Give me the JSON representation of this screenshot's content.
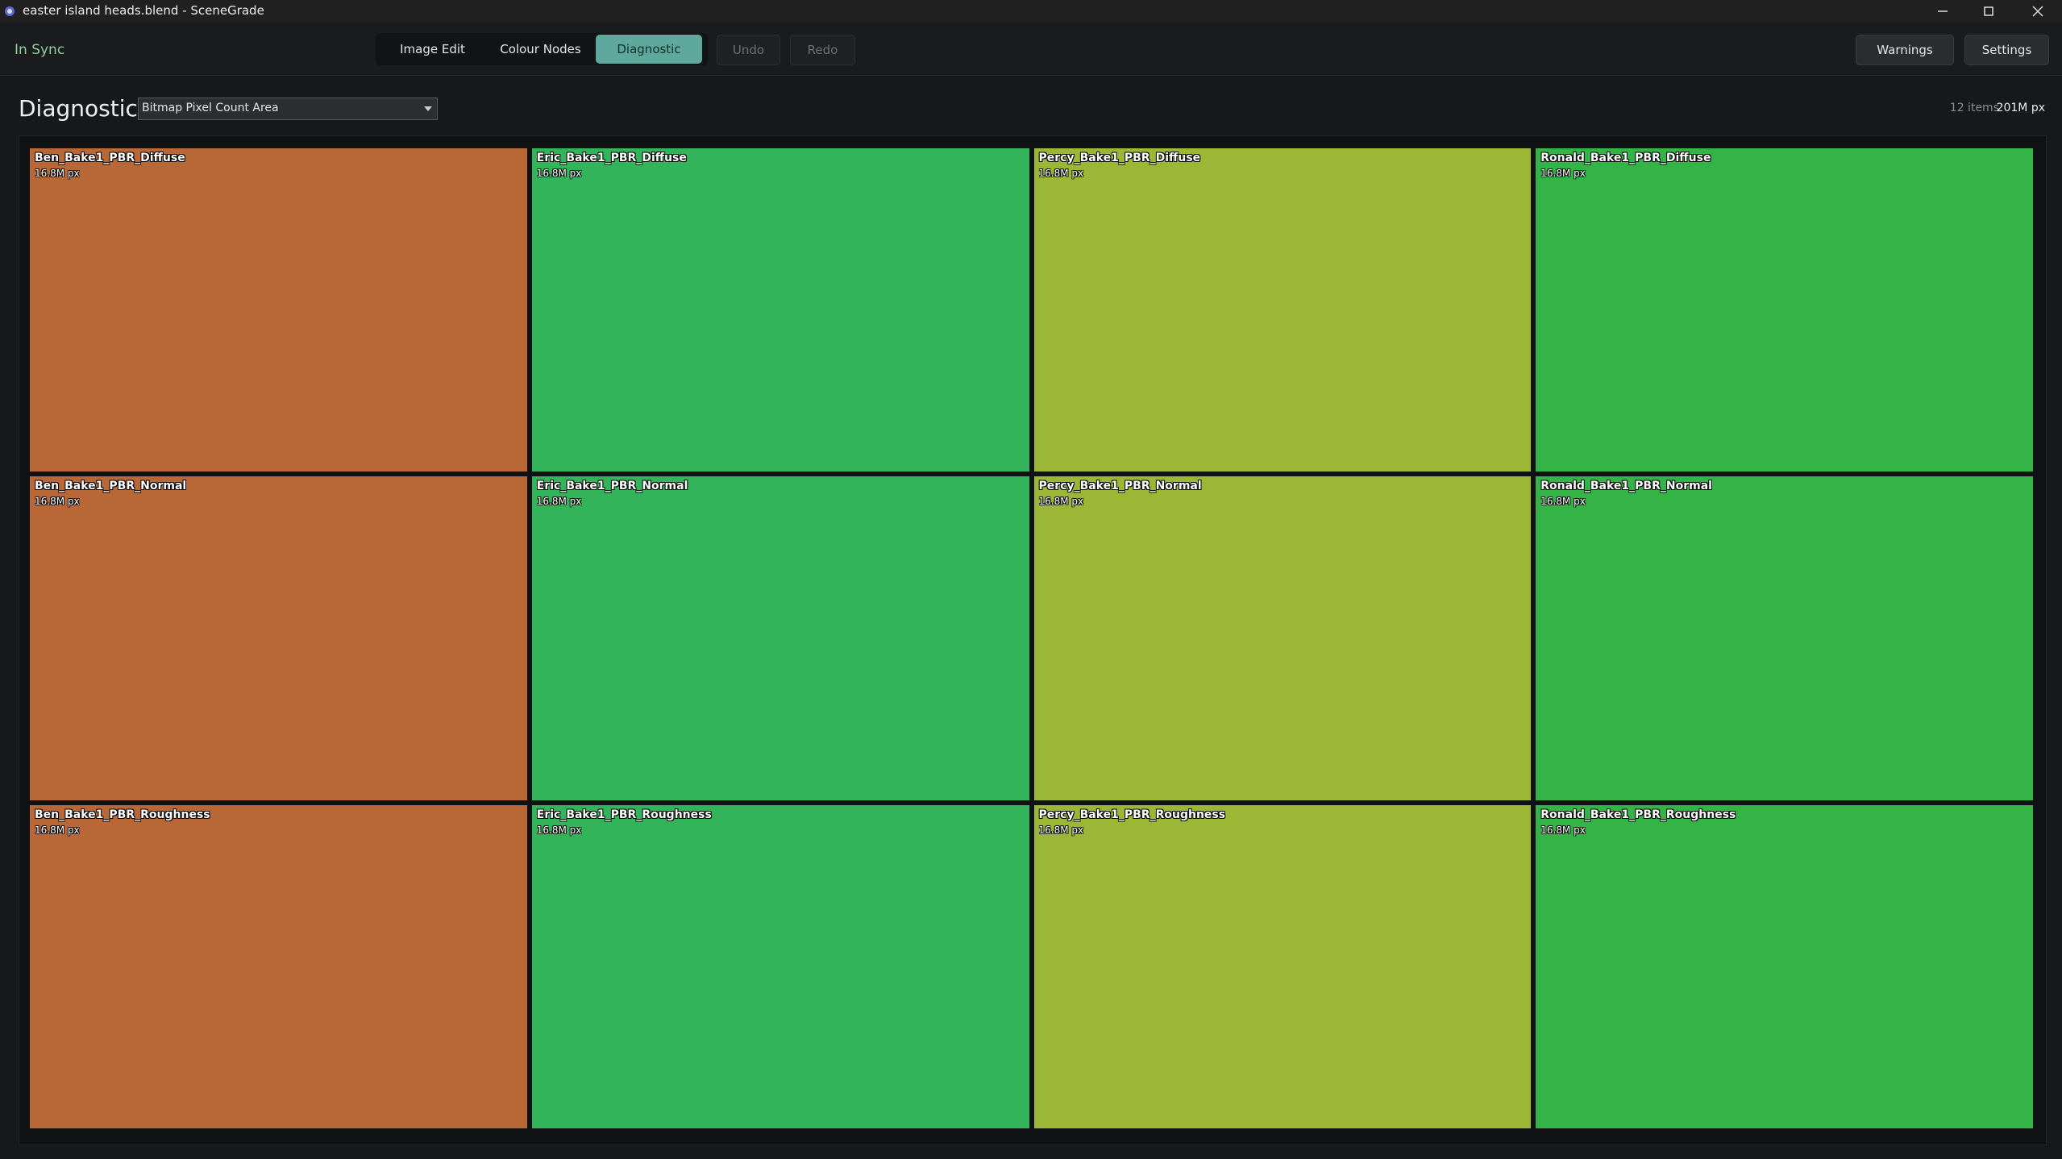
{
  "window": {
    "title": "easter island heads.blend - SceneGrade"
  },
  "toolbar": {
    "status": "In Sync",
    "tabs": [
      "Image Edit",
      "Colour Nodes",
      "Diagnostic"
    ],
    "active_tab": 2,
    "history": [
      "Undo",
      "Redo"
    ],
    "right": [
      "Warnings",
      "Settings"
    ]
  },
  "panel": {
    "title": "Diagnostic",
    "dropdown": "Bitmap Pixel Count Area",
    "count": "12 items",
    "total": "201M px",
    "columns": 4,
    "tiles": [
      {
        "label": "Ben_Bake1_PBR_Diffuse",
        "size": "16.8M px",
        "color": "#b86836"
      },
      {
        "label": "Eric_Bake1_PBR_Diffuse",
        "size": "16.8M px",
        "color": "#34b45a"
      },
      {
        "label": "Percy_Bake1_PBR_Diffuse",
        "size": "16.8M px",
        "color": "#9cb736"
      },
      {
        "label": "Ronald_Bake1_PBR_Diffuse",
        "size": "16.8M px",
        "color": "#34b347"
      },
      {
        "label": "Ben_Bake1_PBR_Normal",
        "size": "16.8M px",
        "color": "#b86836"
      },
      {
        "label": "Eric_Bake1_PBR_Normal",
        "size": "16.8M px",
        "color": "#34b45a"
      },
      {
        "label": "Percy_Bake1_PBR_Normal",
        "size": "16.8M px",
        "color": "#9cb736"
      },
      {
        "label": "Ronald_Bake1_PBR_Normal",
        "size": "16.8M px",
        "color": "#34b347"
      },
      {
        "label": "Ben_Bake1_PBR_Roughness",
        "size": "16.8M px",
        "color": "#b86836"
      },
      {
        "label": "Eric_Bake1_PBR_Roughness",
        "size": "16.8M px",
        "color": "#34b45a"
      },
      {
        "label": "Percy_Bake1_PBR_Roughness",
        "size": "16.8M px",
        "color": "#9cb736"
      },
      {
        "label": "Ronald_Bake1_PBR_Roughness",
        "size": "16.8M px",
        "color": "#34b347"
      }
    ]
  }
}
